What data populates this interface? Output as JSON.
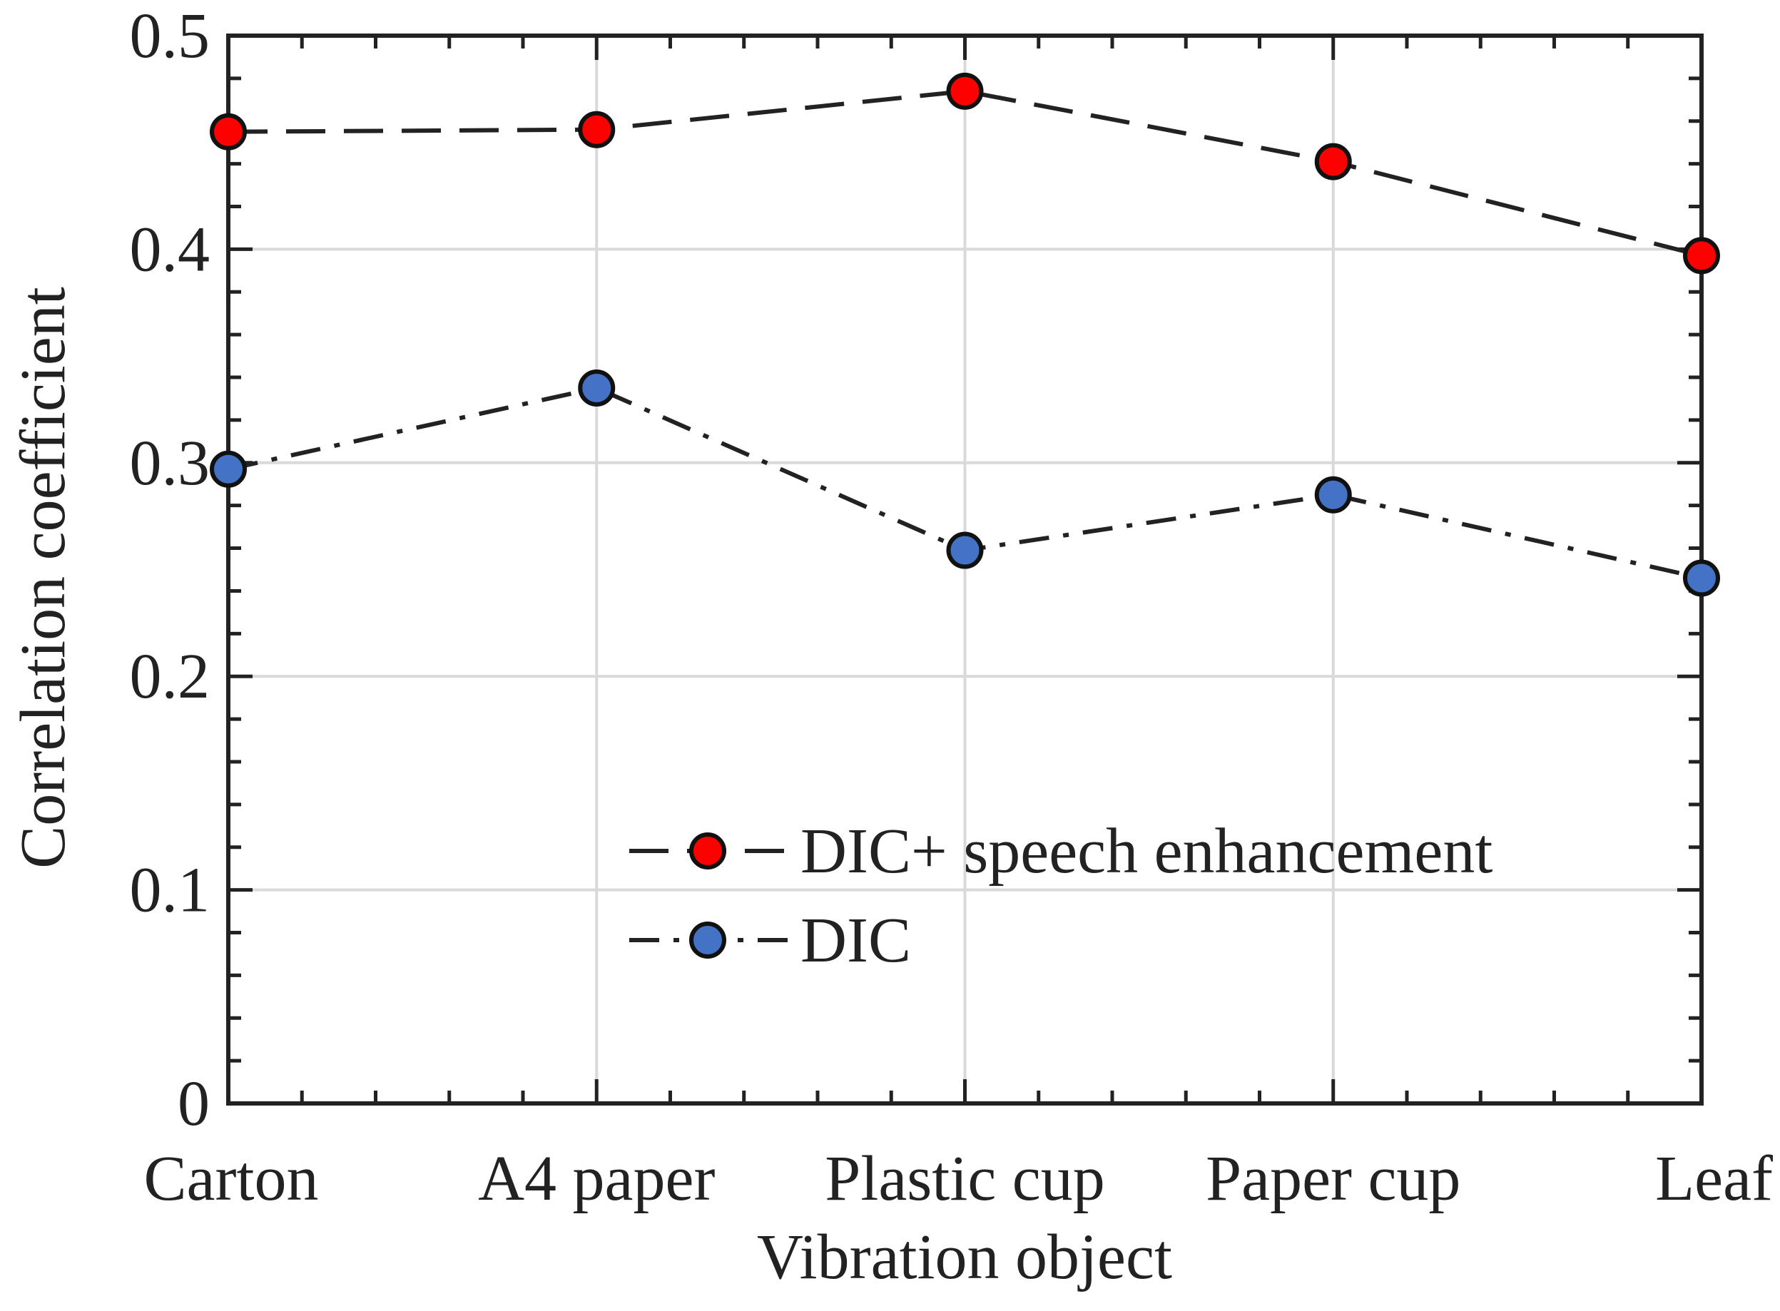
{
  "chart_data": {
    "type": "line",
    "title": "",
    "xlabel": "Vibration object",
    "ylabel": "Correlation coefficient",
    "categories": [
      "Carton",
      "A4 paper",
      "Plastic cup",
      "Paper cup",
      "Leaf"
    ],
    "ylim": [
      0,
      0.5
    ],
    "yticks": [
      0,
      0.1,
      0.2,
      0.3,
      0.4,
      0.5
    ],
    "ytick_labels": [
      "0",
      "0.1",
      "0.2",
      "0.3",
      "0.4",
      "0.5"
    ],
    "grid": true,
    "legend_position": "lower-right",
    "series": [
      {
        "name": "DIC+ speech enhancement",
        "values": [
          0.455,
          0.456,
          0.474,
          0.441,
          0.397
        ],
        "color": "#ff0000",
        "line_style": "dashed"
      },
      {
        "name": "DIC",
        "values": [
          0.297,
          0.335,
          0.259,
          0.285,
          0.246
        ],
        "color": "#4472c4",
        "line_style": "dash-dot"
      }
    ]
  }
}
